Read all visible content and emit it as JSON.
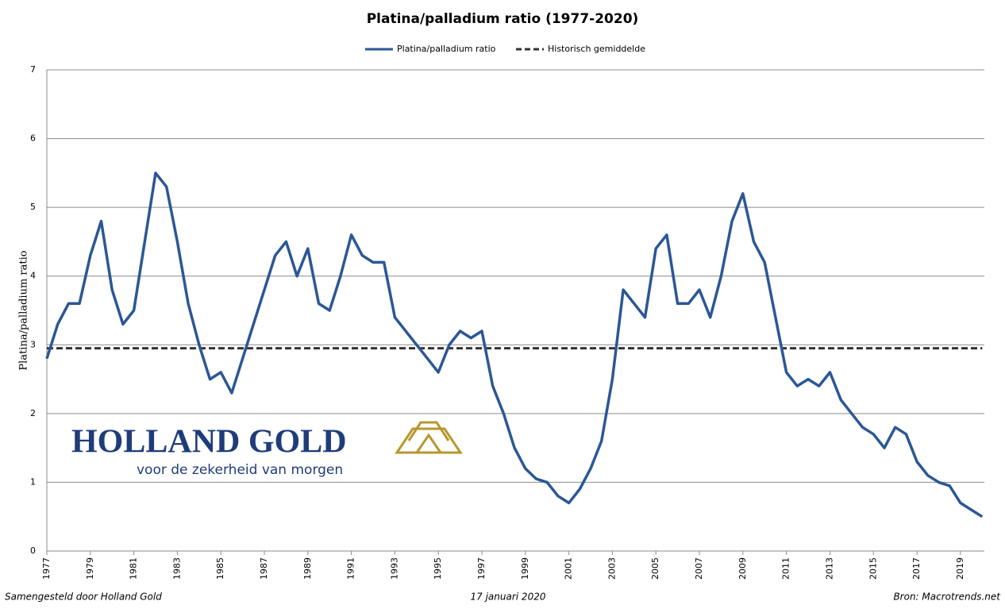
{
  "chart_data": {
    "type": "line",
    "title": "Platina/palladium ratio (1977-2020)",
    "ylabel": "Platina/palladium ratio",
    "x": [
      1977,
      1977.5,
      1978,
      1978.5,
      1979,
      1979.5,
      1980,
      1980.5,
      1981,
      1981.5,
      1982,
      1982.5,
      1983,
      1983.5,
      1984,
      1984.5,
      1985,
      1985.5,
      1986,
      1986.5,
      1987,
      1987.5,
      1988,
      1988.5,
      1989,
      1989.5,
      1990,
      1990.5,
      1991,
      1991.5,
      1992,
      1992.5,
      1993,
      1993.5,
      1994,
      1994.5,
      1995,
      1995.5,
      1996,
      1996.5,
      1997,
      1997.5,
      1998,
      1998.5,
      1999,
      1999.5,
      2000,
      2000.5,
      2001,
      2001.5,
      2002,
      2002.5,
      2003,
      2003.5,
      2004,
      2004.5,
      2005,
      2005.5,
      2006,
      2006.5,
      2007,
      2007.5,
      2008,
      2008.5,
      2009,
      2009.5,
      2010,
      2010.5,
      2011,
      2011.5,
      2012,
      2012.5,
      2013,
      2013.5,
      2014,
      2014.5,
      2015,
      2015.5,
      2016,
      2016.5,
      2017,
      2017.5,
      2018,
      2018.5,
      2019,
      2019.5,
      2020
    ],
    "series": [
      {
        "name": "Platina/palladium ratio",
        "color": "#2b5796",
        "dash": false,
        "values": [
          2.8,
          3.3,
          3.6,
          3.6,
          4.3,
          4.8,
          3.8,
          3.3,
          3.5,
          4.5,
          5.5,
          5.3,
          4.5,
          3.6,
          3.0,
          2.5,
          2.6,
          2.3,
          2.8,
          3.3,
          3.8,
          4.3,
          4.5,
          4.0,
          4.4,
          3.6,
          3.5,
          4.0,
          4.6,
          4.3,
          4.2,
          4.2,
          3.4,
          3.2,
          3.0,
          2.8,
          2.6,
          3.0,
          3.2,
          3.1,
          3.2,
          2.4,
          2.0,
          1.5,
          1.2,
          1.05,
          1.0,
          0.8,
          0.7,
          0.9,
          1.2,
          1.6,
          2.5,
          3.8,
          3.6,
          3.4,
          4.4,
          4.6,
          3.6,
          3.6,
          3.8,
          3.4,
          4.0,
          4.8,
          5.2,
          4.5,
          4.2,
          3.4,
          2.6,
          2.4,
          2.5,
          2.4,
          2.6,
          2.2,
          2.0,
          1.8,
          1.7,
          1.5,
          1.8,
          1.7,
          1.3,
          1.1,
          1.0,
          0.95,
          0.7,
          0.6,
          0.5
        ]
      },
      {
        "name": "Historisch gemiddelde",
        "color": "#333333",
        "dash": true,
        "values": [
          2.95,
          2.95,
          2.95,
          2.95,
          2.95,
          2.95,
          2.95,
          2.95,
          2.95,
          2.95,
          2.95,
          2.95,
          2.95,
          2.95,
          2.95,
          2.95,
          2.95,
          2.95,
          2.95,
          2.95,
          2.95,
          2.95,
          2.95,
          2.95,
          2.95,
          2.95,
          2.95,
          2.95,
          2.95,
          2.95,
          2.95,
          2.95,
          2.95,
          2.95,
          2.95,
          2.95,
          2.95,
          2.95,
          2.95,
          2.95,
          2.95,
          2.95,
          2.95,
          2.95,
          2.95,
          2.95,
          2.95,
          2.95,
          2.95,
          2.95,
          2.95,
          2.95,
          2.95,
          2.95,
          2.95,
          2.95,
          2.95,
          2.95,
          2.95,
          2.95,
          2.95,
          2.95,
          2.95,
          2.95,
          2.95,
          2.95,
          2.95,
          2.95,
          2.95,
          2.95,
          2.95,
          2.95,
          2.95,
          2.95,
          2.95,
          2.95,
          2.95,
          2.95,
          2.95,
          2.95,
          2.95,
          2.95,
          2.95,
          2.95,
          2.95,
          2.95,
          2.95
        ]
      }
    ],
    "xlim": [
      1977,
      2020.1
    ],
    "xticks": [
      1977,
      1979,
      1981,
      1983,
      1985,
      1987,
      1989,
      1991,
      1993,
      1995,
      1997,
      1999,
      2001,
      2003,
      2005,
      2007,
      2009,
      2011,
      2013,
      2015,
      2017,
      2019
    ],
    "ylim": [
      0,
      7
    ],
    "yticks": [
      0,
      1,
      2,
      3,
      4,
      5,
      6,
      7
    ],
    "grid": true,
    "legend": "top"
  },
  "logo": {
    "name": "HOLLAND GOLD",
    "tagline": "voor de zekerheid van morgen"
  },
  "footer": {
    "left": "Samengesteld door Holland Gold",
    "center": "17 januari 2020",
    "right": "Bron: Macrotrends.net"
  }
}
